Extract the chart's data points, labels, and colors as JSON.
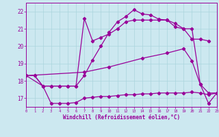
{
  "bg_color": "#cce8f0",
  "line_color": "#990099",
  "grid_color": "#aad4dd",
  "xlabel": "Windchill (Refroidissement éolien,°C)",
  "xlim": [
    0,
    23
  ],
  "ylim": [
    16.5,
    22.5
  ],
  "xticks": [
    0,
    1,
    2,
    3,
    4,
    5,
    6,
    7,
    8,
    9,
    10,
    11,
    12,
    13,
    14,
    15,
    16,
    17,
    18,
    19,
    20,
    21,
    22,
    23
  ],
  "yticks": [
    17,
    18,
    19,
    20,
    21,
    22
  ],
  "lines": [
    {
      "x": [
        0,
        1,
        2,
        3,
        4,
        5,
        6,
        7,
        8,
        9,
        10,
        11,
        12,
        13,
        14,
        15,
        16,
        17,
        18,
        19,
        20,
        21,
        22,
        23
      ],
      "y": [
        18.3,
        18.3,
        17.7,
        16.7,
        16.7,
        16.7,
        16.75,
        17.0,
        17.05,
        17.1,
        17.1,
        17.15,
        17.2,
        17.2,
        17.25,
        17.25,
        17.3,
        17.3,
        17.3,
        17.3,
        17.35,
        17.3,
        17.2,
        17.3
      ]
    },
    {
      "x": [
        0,
        1,
        2,
        3,
        4,
        5,
        6,
        7,
        8,
        9,
        10,
        11,
        12,
        13,
        14,
        15,
        16,
        17,
        18,
        19,
        20,
        21,
        22,
        23
      ],
      "y": [
        18.3,
        18.3,
        17.7,
        17.7,
        17.7,
        17.7,
        17.7,
        18.3,
        19.2,
        20.0,
        20.8,
        21.4,
        21.7,
        22.1,
        21.85,
        21.8,
        21.55,
        21.5,
        21.3,
        21.0,
        21.0,
        17.8,
        16.7,
        17.3
      ]
    },
    {
      "x": [
        0,
        2,
        3,
        4,
        5,
        6,
        7,
        8,
        9,
        10,
        11,
        12,
        13,
        14,
        15,
        16,
        17,
        18,
        19,
        20,
        21,
        22
      ],
      "y": [
        18.3,
        17.7,
        17.7,
        17.7,
        17.7,
        17.7,
        21.6,
        20.3,
        20.5,
        20.7,
        21.0,
        21.4,
        21.5,
        21.5,
        21.5,
        21.5,
        21.5,
        21.1,
        21.0,
        20.4,
        20.4,
        20.3
      ]
    },
    {
      "x": [
        0,
        7,
        10,
        14,
        17,
        19,
        20,
        21,
        22,
        23
      ],
      "y": [
        18.3,
        18.5,
        18.8,
        19.3,
        19.6,
        19.85,
        19.15,
        17.8,
        17.3,
        17.3
      ]
    }
  ]
}
